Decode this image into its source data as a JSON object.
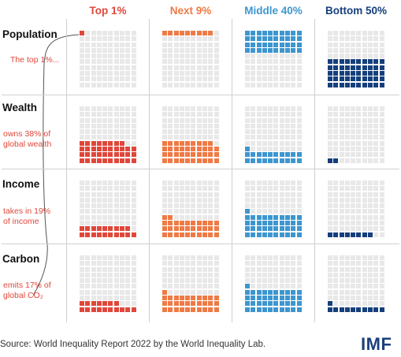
{
  "chart_data": {
    "type": "waffle",
    "columns": [
      {
        "label": "Top 1%",
        "color": "#e0473a"
      },
      {
        "label": "Next 9%",
        "color": "#ef7a45"
      },
      {
        "label": "Middle 40%",
        "color": "#3d96cf"
      },
      {
        "label": "Bottom 50%",
        "color": "#153f7c"
      }
    ],
    "rows": [
      {
        "label": "Population",
        "note": [
          "The top 1%..."
        ],
        "values": [
          1,
          9,
          40,
          50
        ]
      },
      {
        "label": "Wealth",
        "note": [
          "owns 38% of",
          "global wealth"
        ],
        "values": [
          38,
          39,
          21,
          2
        ]
      },
      {
        "label": "Income",
        "note": [
          "takes in 19%",
          "of income"
        ],
        "values": [
          19,
          32,
          41,
          8
        ]
      },
      {
        "label": "Carbon",
        "note": [
          "emits 17% of",
          "global CO₂"
        ],
        "values": [
          17,
          31,
          41,
          11
        ]
      }
    ],
    "cells_per_grid": 100
  },
  "footer": {
    "source": "Source: World Inequality Report 2022 by the World Inequality Lab.",
    "logo": "IMF"
  },
  "colors": {
    "empty_cell": "#e8e8e8",
    "divider": "#d0d0d0",
    "note": "#e0473a"
  }
}
